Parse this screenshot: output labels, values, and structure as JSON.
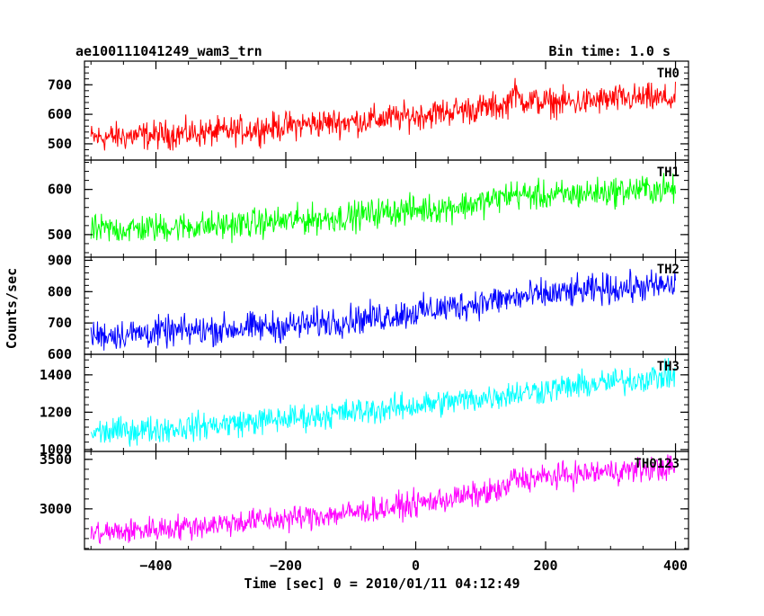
{
  "header": {
    "title": "ae100111041249_wam3_trn",
    "bin_time": "Bin time: 1.0 s"
  },
  "axes": {
    "xlabel": "Time [sec] 0 = 2010/01/11 04:12:49",
    "ylabel": "Counts/sec",
    "xlim": [
      -510,
      420
    ],
    "x_ticks": [
      -400,
      -200,
      0,
      200,
      400
    ],
    "x_tick_labels": [
      "−400",
      "−200",
      "0",
      "200",
      "400"
    ]
  },
  "chart_data": {
    "type": "line",
    "title": "ae100111041249_wam3_trn",
    "xlabel": "Time [sec] 0 = 2010/01/11 04:12:49",
    "ylabel": "Counts/sec",
    "bin_time_s": 1.0,
    "x_range": [
      -500,
      400
    ],
    "layout": "5 stacked panels sharing the time axis",
    "grid": false,
    "series": [
      {
        "name": "TH0",
        "color": "#ff0000",
        "ylim": [
          445,
          780
        ],
        "y_ticks": [
          500,
          600,
          700
        ],
        "x": [
          -500,
          -450,
          -400,
          -350,
          -300,
          -250,
          -200,
          -150,
          -100,
          -50,
          0,
          50,
          100,
          140,
          150,
          160,
          200,
          250,
          300,
          350,
          400
        ],
        "y": [
          520,
          525,
          530,
          535,
          540,
          550,
          560,
          570,
          575,
          585,
          595,
          610,
          620,
          630,
          680,
          650,
          640,
          640,
          650,
          655,
          650
        ],
        "noise": 30
      },
      {
        "name": "TH1",
        "color": "#00ff00",
        "ylim": [
          450,
          665
        ],
        "y_ticks": [
          500,
          600
        ],
        "x": [
          -500,
          -450,
          -400,
          -350,
          -300,
          -250,
          -200,
          -150,
          -100,
          -50,
          0,
          50,
          100,
          150,
          200,
          250,
          300,
          350,
          400
        ],
        "y": [
          510,
          512,
          515,
          518,
          520,
          525,
          530,
          535,
          540,
          550,
          555,
          560,
          570,
          590,
          585,
          590,
          595,
          600,
          600
        ],
        "noise": 20
      },
      {
        "name": "TH2",
        "color": "#0000ff",
        "ylim": [
          600,
          910
        ],
        "y_ticks": [
          600,
          700,
          800,
          900
        ],
        "x": [
          -500,
          -450,
          -400,
          -350,
          -300,
          -250,
          -200,
          -150,
          -100,
          -50,
          0,
          50,
          100,
          150,
          200,
          250,
          300,
          350,
          400
        ],
        "y": [
          660,
          665,
          670,
          675,
          680,
          685,
          690,
          700,
          710,
          720,
          735,
          750,
          765,
          780,
          790,
          800,
          810,
          815,
          820
        ],
        "noise": 30
      },
      {
        "name": "TH3",
        "color": "#00ffff",
        "ylim": [
          990,
          1510
        ],
        "y_ticks": [
          1000,
          1200,
          1400
        ],
        "x": [
          -500,
          -450,
          -400,
          -350,
          -300,
          -250,
          -200,
          -150,
          -100,
          -50,
          0,
          50,
          100,
          150,
          200,
          250,
          300,
          350,
          400
        ],
        "y": [
          1090,
          1100,
          1110,
          1120,
          1135,
          1150,
          1165,
          1180,
          1200,
          1215,
          1235,
          1255,
          1275,
          1300,
          1320,
          1340,
          1360,
          1380,
          1400
        ],
        "noise": 45
      },
      {
        "name": "TH0123",
        "color": "#ff00ff",
        "ylim": [
          2590,
          3580
        ],
        "y_ticks": [
          3000,
          3500
        ],
        "x": [
          -500,
          -450,
          -400,
          -350,
          -300,
          -250,
          -200,
          -150,
          -100,
          -50,
          0,
          50,
          100,
          140,
          150,
          160,
          200,
          250,
          300,
          350,
          400
        ],
        "y": [
          2750,
          2770,
          2800,
          2820,
          2850,
          2880,
          2900,
          2930,
          2960,
          3000,
          3050,
          3100,
          3150,
          3200,
          3320,
          3300,
          3320,
          3350,
          3380,
          3400,
          3420
        ],
        "noise": 80
      }
    ]
  }
}
